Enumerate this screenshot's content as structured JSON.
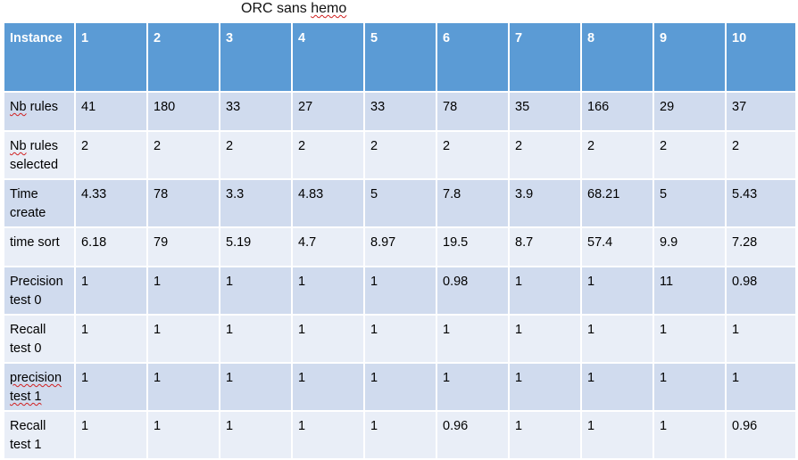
{
  "title": {
    "prefix": "ORC sans ",
    "flagged": "hemo"
  },
  "table": {
    "header_label": "Instance",
    "columns": [
      "1",
      "2",
      "3",
      "4",
      "5",
      "6",
      "7",
      "8",
      "9",
      "10"
    ],
    "rows": [
      {
        "label_parts": [
          {
            "t": "Nb",
            "spell": true
          },
          {
            "t": " rules",
            "spell": false
          }
        ],
        "values": [
          "41",
          "180",
          "33",
          "27",
          "33",
          "78",
          "35",
          "166",
          "29",
          "37"
        ],
        "height": 44
      },
      {
        "label_parts": [
          {
            "t": "Nb",
            "spell": true
          },
          {
            "t": " rules",
            "spell": false
          },
          {
            "br": true
          },
          {
            "t": "selected",
            "spell": false
          }
        ],
        "values": [
          "2",
          "2",
          "2",
          "2",
          "2",
          "2",
          "2",
          "2",
          "2",
          "2"
        ],
        "height": 50
      },
      {
        "label_parts": [
          {
            "t": "Time",
            "spell": false
          },
          {
            "br": true
          },
          {
            "t": "create",
            "spell": false
          }
        ],
        "values": [
          "4.33",
          "78",
          "3.3",
          "4.83",
          "5",
          "7.8",
          "3.9",
          "68.21",
          "5",
          "5.43"
        ],
        "height": 50
      },
      {
        "label_parts": [
          {
            "t": "time sort",
            "spell": false
          }
        ],
        "values": [
          "6.18",
          "79",
          "5.19",
          "4.7",
          "8.97",
          "19.5",
          "8.7",
          "57.4",
          "9.9",
          "7.28"
        ],
        "height": 44
      },
      {
        "label_parts": [
          {
            "t": "Precision",
            "spell": false
          },
          {
            "br": true
          },
          {
            "t": "test 0",
            "spell": false
          }
        ],
        "values": [
          "1",
          "1",
          "1",
          "1",
          "1",
          "0.98",
          "1",
          "1",
          "11",
          "0.98"
        ],
        "height": 50
      },
      {
        "label_parts": [
          {
            "t": "Recall",
            "spell": false
          },
          {
            "br": true
          },
          {
            "t": "test 0",
            "spell": false
          }
        ],
        "values": [
          "1",
          "1",
          "1",
          "1",
          "1",
          "1",
          "1",
          "1",
          "1",
          "1"
        ],
        "height": 50
      },
      {
        "label_parts": [
          {
            "t": "precision",
            "spell": true
          },
          {
            "br": true
          },
          {
            "t": "test 1",
            "spell": true
          }
        ],
        "values": [
          "1",
          "1",
          "1",
          "1",
          "1",
          "1",
          "1",
          "1",
          "1",
          "1"
        ],
        "height": 50
      },
      {
        "label_parts": [
          {
            "t": "Recall",
            "spell": false
          },
          {
            "br": true
          },
          {
            "t": "test 1",
            "spell": false
          }
        ],
        "values": [
          "1",
          "1",
          "1",
          "1",
          "1",
          "0.96",
          "1",
          "1",
          "1",
          "0.96"
        ],
        "height": 50
      }
    ]
  }
}
